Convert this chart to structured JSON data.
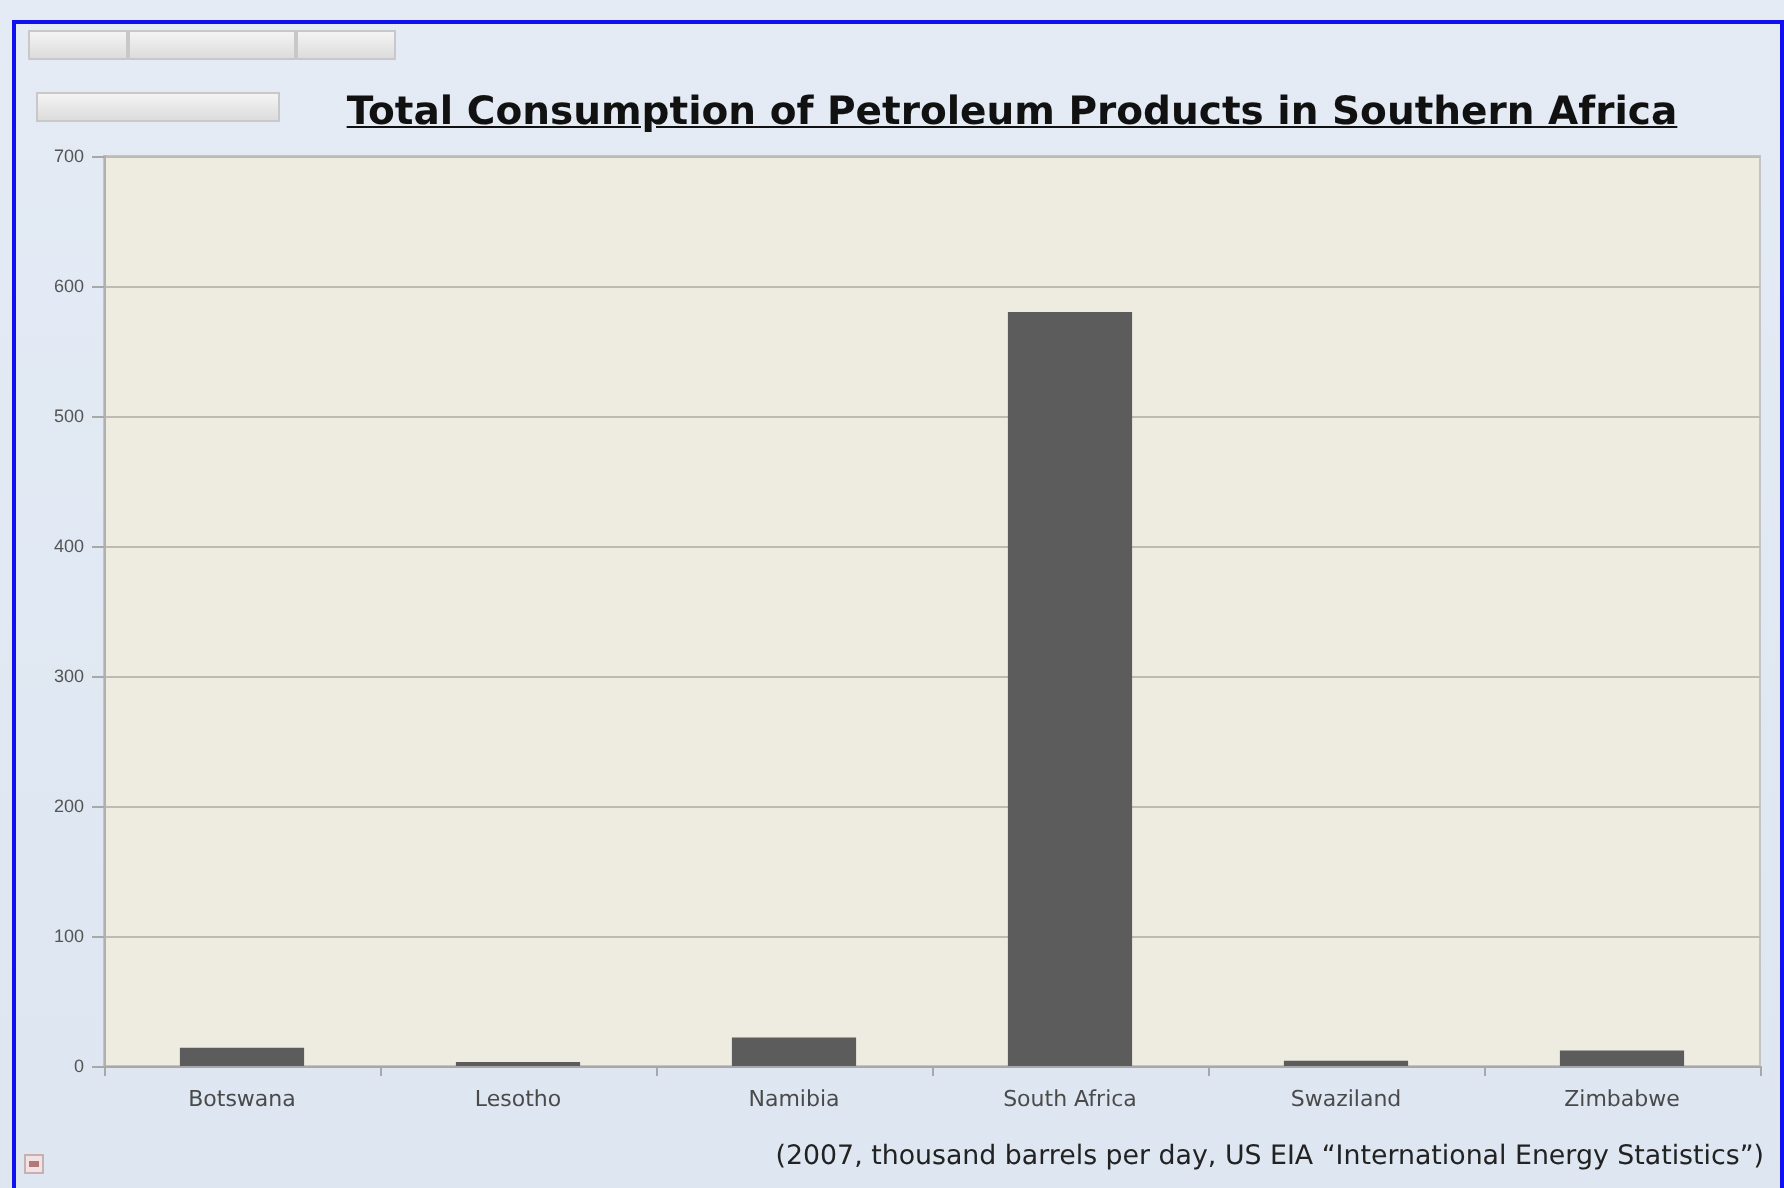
{
  "chart_data": {
    "type": "bar",
    "title": "Total Consumption of Petroleum Products in Southern Africa",
    "categories": [
      "Botswana",
      "Lesotho",
      "Namibia",
      "South Africa",
      "Swaziland",
      "Zimbabwe"
    ],
    "values": [
      14,
      3,
      22,
      580,
      4,
      12
    ],
    "color": "#5c5c5c",
    "ylim": [
      0,
      700
    ],
    "yticks": [
      0,
      100,
      200,
      300,
      400,
      500,
      600,
      700
    ],
    "grid": "y",
    "annotations": [
      "(2007, thousand barrels per day, US EIA “International Energy Statistics”)"
    ]
  }
}
